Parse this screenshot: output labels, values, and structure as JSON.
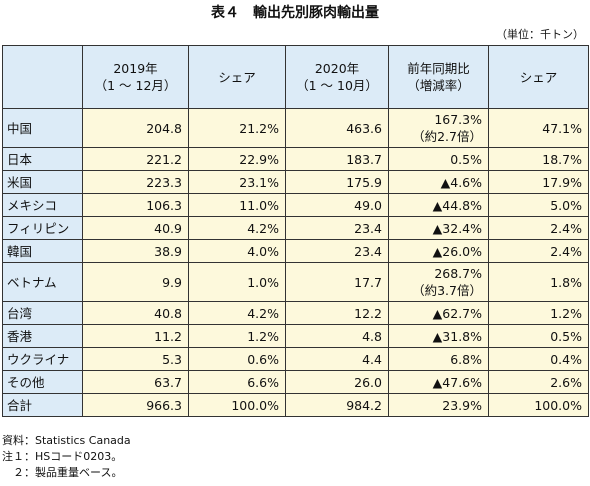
{
  "title": "表４　輸出先別豚肉輸出量",
  "unit": "（単位：千トン）",
  "table": {
    "header": [
      "",
      "2019年\n（1 ～ 12月）",
      "シェア",
      "2020年\n（1 ～ 10月）",
      "前年同期比\n（増減率）",
      "シェア"
    ],
    "rows": [
      [
        "中国",
        "204.8",
        "21.2%",
        "463.6",
        "167.3%\n（約2.7倍）",
        "47.1%"
      ],
      [
        "日本",
        "221.2",
        "22.9%",
        "183.7",
        "0.5%",
        "18.7%"
      ],
      [
        "米国",
        "223.3",
        "23.1%",
        "175.9",
        "▲4.6%",
        "17.9%"
      ],
      [
        "メキシコ",
        "106.3",
        "11.0%",
        "49.0",
        "▲44.8%",
        "5.0%"
      ],
      [
        "フィリピン",
        "40.9",
        "4.2%",
        "23.4",
        "▲32.4%",
        "2.4%"
      ],
      [
        "韓国",
        "38.9",
        "4.0%",
        "23.4",
        "▲26.0%",
        "2.4%"
      ],
      [
        "ベトナム",
        "9.9",
        "1.0%",
        "17.7",
        "268.7%\n（約3.7倍）",
        "1.8%"
      ],
      [
        "台湾",
        "40.8",
        "4.2%",
        "12.2",
        "▲62.7%",
        "1.2%"
      ],
      [
        "香港",
        "11.2",
        "1.2%",
        "4.8",
        "▲31.8%",
        "0.5%"
      ],
      [
        "ウクライナ",
        "5.3",
        "0.6%",
        "4.4",
        "6.8%",
        "0.4%"
      ],
      [
        "その他",
        "63.7",
        "6.6%",
        "26.0",
        "▲47.6%",
        "2.6%"
      ],
      [
        "合計",
        "966.3",
        "100.0%",
        "984.2",
        "23.9%",
        "100.0%"
      ]
    ]
  },
  "notes": [
    "資料：Statistics Canada",
    "注１：HSコード0203。",
    "　２：製品重量ベース。"
  ]
}
